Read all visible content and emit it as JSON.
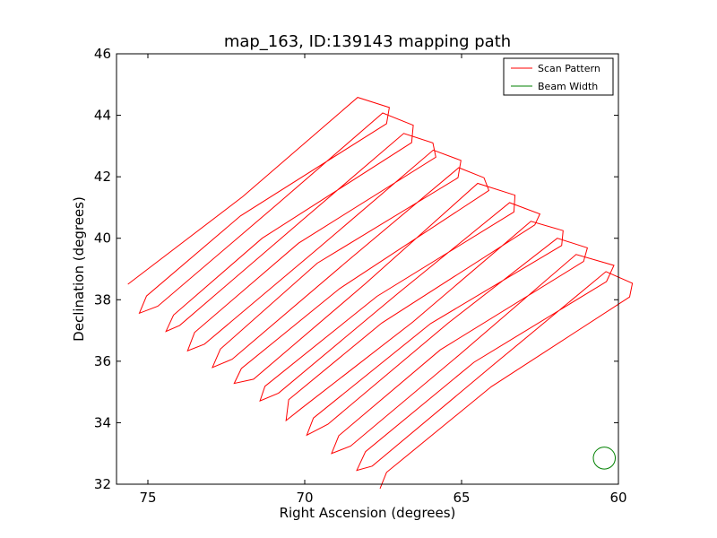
{
  "chart_data": {
    "type": "line",
    "title": "map_163, ID:139143 mapping path",
    "xlabel": "Right Ascension (degrees)",
    "ylabel": "Declination (degrees)",
    "xlim": [
      76,
      60
    ],
    "ylim": [
      32,
      46
    ],
    "x_ticks": [
      75,
      70,
      65,
      60
    ],
    "y_ticks": [
      32,
      34,
      36,
      38,
      40,
      42,
      44,
      46
    ],
    "x_tick_labels": [
      "75",
      "70",
      "65",
      "60"
    ],
    "y_tick_labels": [
      "32",
      "34",
      "36",
      "38",
      "40",
      "42",
      "44",
      "46"
    ],
    "grid": false,
    "legend_position": "top-right",
    "scan": {
      "name": "Scan Pattern",
      "color": "#ff0000",
      "line_start": [
        [
          75.5,
          38.3
        ],
        [
          67.45,
          32.35
        ]
      ],
      "line_end": [
        [
          68.3,
          44.6
        ],
        [
          60.0,
          38.6
        ]
      ],
      "n_lines": 22,
      "endpoint_jitter_deg": 0.55
    },
    "beam": {
      "name": "Beam Width",
      "color": "#008000",
      "center": [
        60.45,
        32.85
      ],
      "radius_deg": 0.35
    },
    "legend": [
      {
        "label": "Scan Pattern",
        "color": "#ff0000"
      },
      {
        "label": "Beam Width",
        "color": "#008000"
      }
    ]
  }
}
